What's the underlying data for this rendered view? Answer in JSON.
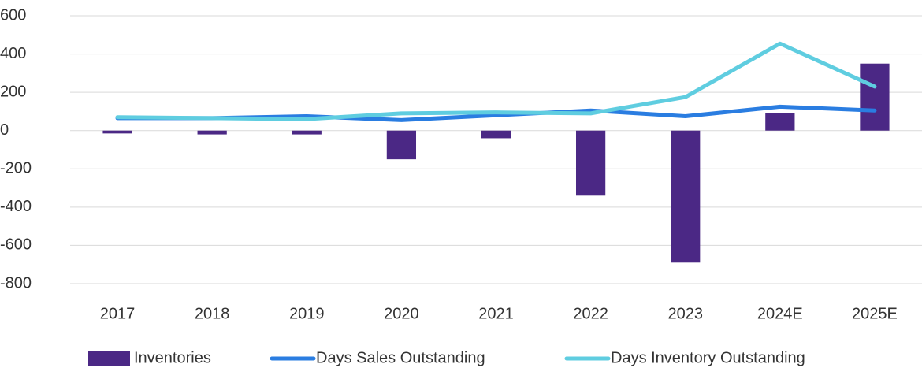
{
  "chart_data": {
    "type": "combo",
    "categories": [
      "2017",
      "2018",
      "2019",
      "2020",
      "2021",
      "2022",
      "2023",
      "2024E",
      "2025E"
    ],
    "series": [
      {
        "name": "Inventories",
        "type": "bar",
        "color": "#4b2885",
        "values": [
          -15,
          -20,
          -20,
          -150,
          -40,
          -340,
          -690,
          90,
          350
        ]
      },
      {
        "name": "Days Sales Outstanding",
        "type": "line",
        "color": "#2a7de1",
        "values": [
          65,
          65,
          75,
          55,
          80,
          105,
          75,
          125,
          105
        ]
      },
      {
        "name": "Days Inventory Outstanding",
        "type": "line",
        "color": "#5fcde0",
        "values": [
          70,
          65,
          60,
          90,
          95,
          90,
          175,
          455,
          230
        ]
      }
    ],
    "ylim": [
      -800,
      600
    ],
    "yticks": [
      -800,
      -600,
      -400,
      -200,
      0,
      200,
      400,
      600
    ],
    "grid": true,
    "legend": "bottom"
  }
}
